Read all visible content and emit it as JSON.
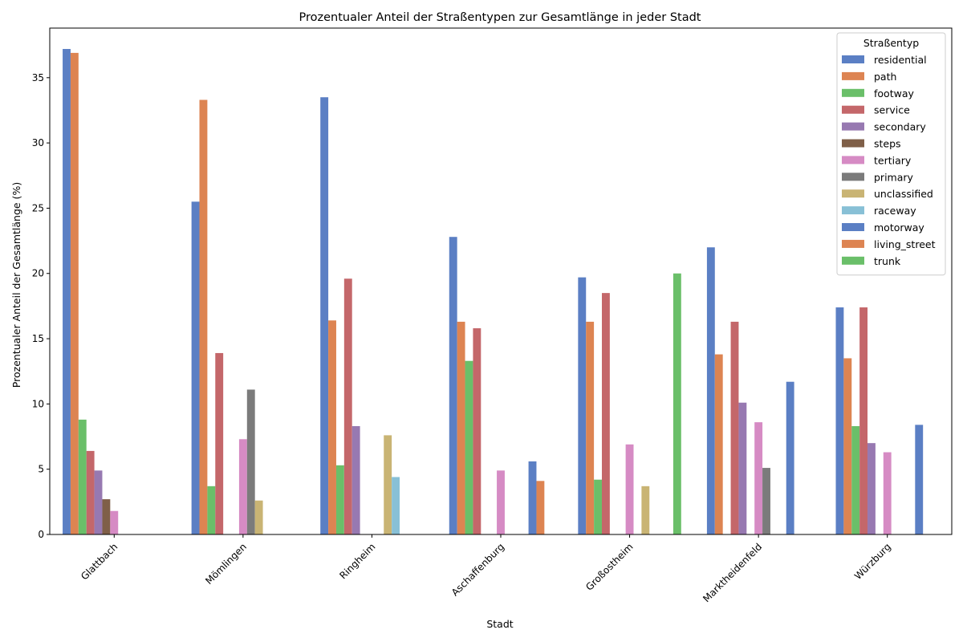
{
  "chart_data": {
    "type": "bar",
    "title": "Prozentualer Anteil der Straßentypen zur Gesamtlänge in jeder Stadt",
    "xlabel": "Stadt",
    "ylabel": "Prozentualer Anteil der Gesamtlänge (%)",
    "ylim": [
      0,
      38.8
    ],
    "yticks": [
      0,
      5,
      10,
      15,
      20,
      25,
      30,
      35
    ],
    "grid": false,
    "legend_title": "Straßentyp",
    "legend_position": "top-right",
    "categories": [
      "Glattbach",
      "Mömlingen",
      "Ringheim",
      "Aschaffenburg",
      "Großostheim",
      "Marktheidenfeld",
      "Würzburg"
    ],
    "series": [
      {
        "name": "residential",
        "color": "#5b7fc4",
        "values": [
          37.2,
          25.5,
          33.5,
          22.8,
          19.7,
          22.0,
          17.4
        ]
      },
      {
        "name": "path",
        "color": "#dd8452",
        "values": [
          36.9,
          33.3,
          16.4,
          16.3,
          16.3,
          13.8,
          13.5
        ]
      },
      {
        "name": "footway",
        "color": "#6abf69",
        "values": [
          8.8,
          3.7,
          5.3,
          13.3,
          4.2,
          0,
          8.3
        ]
      },
      {
        "name": "service",
        "color": "#c4676a",
        "values": [
          6.4,
          13.9,
          19.6,
          15.8,
          18.5,
          16.3,
          17.4
        ]
      },
      {
        "name": "secondary",
        "color": "#9779b1",
        "values": [
          4.9,
          0,
          8.3,
          0,
          0,
          10.1,
          7.0
        ]
      },
      {
        "name": "steps",
        "color": "#7f5f48",
        "values": [
          2.7,
          0,
          0,
          0,
          0,
          0,
          0
        ]
      },
      {
        "name": "tertiary",
        "color": "#d68bc4",
        "values": [
          1.8,
          7.3,
          0,
          4.9,
          6.9,
          8.6,
          6.3
        ]
      },
      {
        "name": "primary",
        "color": "#7b7b7b",
        "values": [
          0,
          11.1,
          0,
          0,
          0,
          5.1,
          0
        ]
      },
      {
        "name": "unclassified",
        "color": "#c9b474",
        "values": [
          0,
          2.6,
          7.6,
          0,
          3.7,
          0,
          0
        ]
      },
      {
        "name": "raceway",
        "color": "#88c0d6",
        "values": [
          0,
          0,
          4.4,
          0,
          0,
          0,
          0
        ]
      },
      {
        "name": "motorway",
        "color": "#5b7fc4",
        "values": [
          0,
          0,
          0,
          5.6,
          0,
          11.7,
          8.4
        ]
      },
      {
        "name": "living_street",
        "color": "#dd8452",
        "values": [
          0,
          0,
          0,
          4.1,
          0,
          0,
          0
        ]
      },
      {
        "name": "trunk",
        "color": "#6abf69",
        "values": [
          0,
          0,
          0,
          0,
          20.0,
          0,
          0
        ]
      }
    ]
  }
}
